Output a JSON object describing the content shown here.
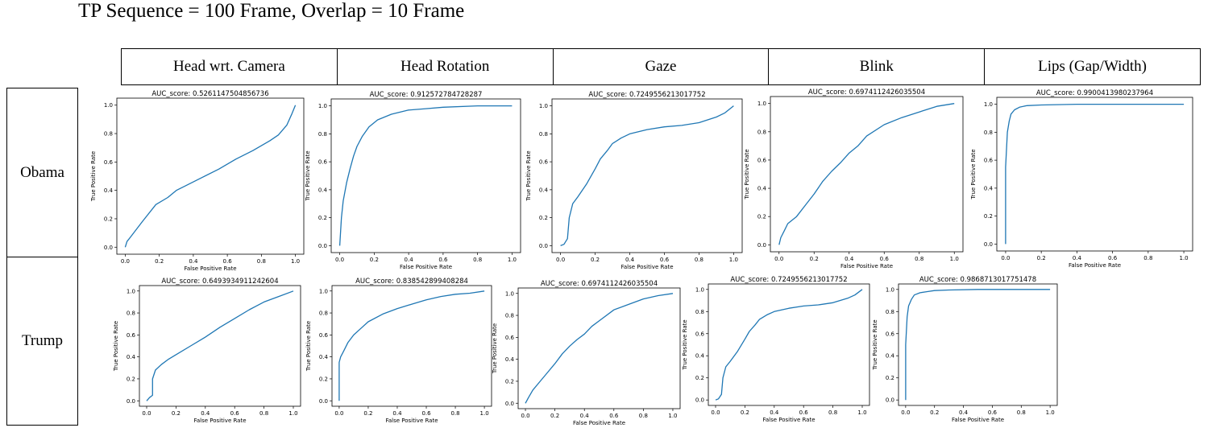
{
  "title": "TP Sequence = 100 Frame,  Overlap = 10 Frame",
  "columns": [
    "Head wrt. Camera",
    "Head Rotation",
    "Gaze",
    "Blink",
    "Lips (Gap/Width)"
  ],
  "rows": [
    "Obama",
    "Trump"
  ],
  "colors": {
    "line": "#1f77b4",
    "axes": "#000000",
    "text": "#000000"
  },
  "chart_data": [
    {
      "type": "line",
      "row": "Obama",
      "column": "Head wrt. Camera",
      "title": "AUC_score: 0.5261147504856736",
      "xlabel": "False Positive Rate",
      "ylabel": "True Positive Rate",
      "xlim": [
        0,
        1
      ],
      "ylim": [
        0,
        1
      ],
      "xticks": [
        "0.0",
        "0.2",
        "0.4",
        "0.6",
        "0.8",
        "1.0"
      ],
      "yticks": [
        "0.0",
        "0.2",
        "0.4",
        "0.6",
        "0.8",
        "1.0"
      ],
      "x": [
        0,
        0.01,
        0.03,
        0.1,
        0.18,
        0.25,
        0.3,
        0.35,
        0.45,
        0.55,
        0.65,
        0.75,
        0.85,
        0.9,
        0.95,
        0.98,
        1.0
      ],
      "y": [
        0,
        0.04,
        0.07,
        0.18,
        0.3,
        0.35,
        0.4,
        0.43,
        0.49,
        0.55,
        0.62,
        0.68,
        0.75,
        0.79,
        0.86,
        0.94,
        1.0
      ]
    },
    {
      "type": "line",
      "row": "Obama",
      "column": "Head Rotation",
      "title": "AUC_score: 0.912572784728287",
      "xlabel": "False Positive Rate",
      "ylabel": "True Positive Rate",
      "xlim": [
        0,
        1
      ],
      "ylim": [
        0,
        1
      ],
      "xticks": [
        "0.0",
        "0.2",
        "0.4",
        "0.6",
        "0.8",
        "1.0"
      ],
      "yticks": [
        "0.0",
        "0.2",
        "0.4",
        "0.6",
        "0.8",
        "1.0"
      ],
      "x": [
        0,
        0.01,
        0.02,
        0.04,
        0.06,
        0.08,
        0.1,
        0.13,
        0.17,
        0.22,
        0.3,
        0.4,
        0.5,
        0.6,
        0.8,
        1.0
      ],
      "y": [
        0,
        0.2,
        0.32,
        0.45,
        0.55,
        0.64,
        0.71,
        0.78,
        0.85,
        0.9,
        0.94,
        0.97,
        0.98,
        0.99,
        1.0,
        1.0
      ]
    },
    {
      "type": "line",
      "row": "Obama",
      "column": "Gaze",
      "title": "AUC_score: 0.7249556213017752",
      "xlabel": "False Positive Rate",
      "ylabel": "True Positive Rate",
      "xlim": [
        0,
        1
      ],
      "ylim": [
        0,
        1
      ],
      "xticks": [
        "0.0",
        "0.2",
        "0.4",
        "0.6",
        "0.8",
        "1.0"
      ],
      "yticks": [
        "0.0",
        "0.2",
        "0.4",
        "0.6",
        "0.8",
        "1.0"
      ],
      "x": [
        0,
        0.02,
        0.04,
        0.05,
        0.07,
        0.1,
        0.15,
        0.2,
        0.23,
        0.27,
        0.3,
        0.35,
        0.4,
        0.5,
        0.6,
        0.7,
        0.8,
        0.9,
        0.95,
        1.0
      ],
      "y": [
        0,
        0.01,
        0.05,
        0.2,
        0.3,
        0.35,
        0.44,
        0.55,
        0.62,
        0.68,
        0.73,
        0.77,
        0.8,
        0.83,
        0.85,
        0.86,
        0.88,
        0.92,
        0.95,
        1.0
      ]
    },
    {
      "type": "line",
      "row": "Obama",
      "column": "Blink",
      "title": "AUC_score: 0.6974112426035504",
      "xlabel": "False Positive Rate",
      "ylabel": "True Positive Rate",
      "xlim": [
        0,
        1
      ],
      "ylim": [
        0,
        1
      ],
      "xticks": [
        "0.0",
        "0.2",
        "0.4",
        "0.6",
        "0.8",
        "1.0"
      ],
      "yticks": [
        "0.0",
        "0.2",
        "0.4",
        "0.6",
        "0.8",
        "1.0"
      ],
      "x": [
        0,
        0.01,
        0.03,
        0.05,
        0.1,
        0.15,
        0.2,
        0.25,
        0.3,
        0.35,
        0.4,
        0.45,
        0.5,
        0.6,
        0.7,
        0.8,
        0.9,
        1.0
      ],
      "y": [
        0,
        0.05,
        0.1,
        0.15,
        0.2,
        0.28,
        0.36,
        0.45,
        0.52,
        0.58,
        0.65,
        0.7,
        0.77,
        0.85,
        0.9,
        0.94,
        0.98,
        1.0
      ]
    },
    {
      "type": "line",
      "row": "Obama",
      "column": "Lips (Gap/Width)",
      "title": "AUC_score: 0.9900413980237964",
      "xlabel": "False Positive Rate",
      "ylabel": "True Positive Rate",
      "xlim": [
        0,
        1
      ],
      "ylim": [
        0,
        1
      ],
      "xticks": [
        "0.0",
        "0.2",
        "0.4",
        "0.6",
        "0.8",
        "1.0"
      ],
      "yticks": [
        "0.0",
        "0.2",
        "0.4",
        "0.6",
        "0.8",
        "1.0"
      ],
      "x": [
        0,
        0,
        0.01,
        0.02,
        0.03,
        0.05,
        0.08,
        0.12,
        0.2,
        0.4,
        1.0
      ],
      "y": [
        0,
        0.55,
        0.8,
        0.88,
        0.93,
        0.96,
        0.98,
        0.99,
        0.995,
        1.0,
        1.0
      ]
    },
    {
      "type": "line",
      "row": "Trump",
      "column": "Head wrt. Camera",
      "title": "AUC_score: 0.6493934911242604",
      "xlabel": "False Positive Rate",
      "ylabel": "True Positive Rate",
      "xlim": [
        0,
        1
      ],
      "ylim": [
        0,
        1
      ],
      "xticks": [
        "0.0",
        "0.2",
        "0.4",
        "0.6",
        "0.8",
        "1.0"
      ],
      "yticks": [
        "0.0",
        "0.2",
        "0.4",
        "0.6",
        "0.8",
        "1.0"
      ],
      "x": [
        0,
        0.02,
        0.04,
        0.04,
        0.06,
        0.1,
        0.15,
        0.2,
        0.3,
        0.4,
        0.5,
        0.6,
        0.7,
        0.8,
        0.9,
        1.0
      ],
      "y": [
        0,
        0.03,
        0.05,
        0.2,
        0.28,
        0.33,
        0.38,
        0.42,
        0.5,
        0.58,
        0.67,
        0.75,
        0.83,
        0.9,
        0.95,
        1.0
      ]
    },
    {
      "type": "line",
      "row": "Trump",
      "column": "Head Rotation",
      "title": "AUC_score: 0.838542899408284",
      "xlabel": "False Positive Rate",
      "ylabel": "True Positive Rate",
      "xlim": [
        0,
        1
      ],
      "ylim": [
        0,
        1
      ],
      "xticks": [
        "0.0",
        "0.2",
        "0.4",
        "0.6",
        "0.8",
        "1.0"
      ],
      "yticks": [
        "0.0",
        "0.2",
        "0.4",
        "0.6",
        "0.8",
        "1.0"
      ],
      "x": [
        0,
        0,
        0.01,
        0.03,
        0.06,
        0.1,
        0.15,
        0.2,
        0.3,
        0.4,
        0.5,
        0.6,
        0.7,
        0.8,
        0.9,
        1.0
      ],
      "y": [
        0,
        0.35,
        0.4,
        0.45,
        0.53,
        0.6,
        0.66,
        0.72,
        0.79,
        0.84,
        0.88,
        0.92,
        0.95,
        0.97,
        0.98,
        1.0
      ]
    },
    {
      "type": "line",
      "row": "Trump",
      "column": "Gaze",
      "title": "AUC_score: 0.6974112426035504",
      "xlabel": "False Positive Rate",
      "ylabel": "True Positive Rate",
      "xlim": [
        0,
        1
      ],
      "ylim": [
        0,
        1
      ],
      "xticks": [
        "0.0",
        "0.2",
        "0.4",
        "0.6",
        "0.8",
        "1.0"
      ],
      "yticks": [
        "0.0",
        "0.2",
        "0.4",
        "0.6",
        "0.8",
        "1.0"
      ],
      "x": [
        0,
        0.02,
        0.05,
        0.1,
        0.15,
        0.2,
        0.25,
        0.3,
        0.35,
        0.4,
        0.45,
        0.5,
        0.6,
        0.7,
        0.8,
        0.9,
        1.0
      ],
      "y": [
        0,
        0.05,
        0.12,
        0.2,
        0.28,
        0.36,
        0.45,
        0.52,
        0.58,
        0.63,
        0.7,
        0.75,
        0.85,
        0.9,
        0.95,
        0.98,
        1.0
      ]
    },
    {
      "type": "line",
      "row": "Trump",
      "column": "Blink",
      "title": "AUC_score: 0.7249556213017752",
      "xlabel": "False Positive Rate",
      "ylabel": "True Positive Rate",
      "xlim": [
        0,
        1
      ],
      "ylim": [
        0,
        1
      ],
      "xticks": [
        "0.0",
        "0.2",
        "0.4",
        "0.6",
        "0.8",
        "1.0"
      ],
      "yticks": [
        "0.0",
        "0.2",
        "0.4",
        "0.6",
        "0.8",
        "1.0"
      ],
      "x": [
        0,
        0.02,
        0.04,
        0.05,
        0.07,
        0.1,
        0.15,
        0.2,
        0.23,
        0.27,
        0.3,
        0.35,
        0.4,
        0.5,
        0.6,
        0.7,
        0.8,
        0.9,
        0.95,
        1.0
      ],
      "y": [
        0,
        0.01,
        0.05,
        0.2,
        0.3,
        0.35,
        0.44,
        0.55,
        0.62,
        0.68,
        0.73,
        0.77,
        0.8,
        0.83,
        0.85,
        0.86,
        0.88,
        0.92,
        0.95,
        1.0
      ]
    },
    {
      "type": "line",
      "row": "Trump",
      "column": "Lips (Gap/Width)",
      "title": "AUC_score: 0.9868713017751478",
      "xlabel": "False Positive Rate",
      "ylabel": "True Positive Rate",
      "xlim": [
        0,
        1
      ],
      "ylim": [
        0,
        1
      ],
      "xticks": [
        "0.0",
        "0.2",
        "0.4",
        "0.6",
        "0.8",
        "1.0"
      ],
      "yticks": [
        "0.0",
        "0.2",
        "0.4",
        "0.6",
        "0.8",
        "1.0"
      ],
      "x": [
        0,
        0,
        0.01,
        0.02,
        0.04,
        0.06,
        0.1,
        0.15,
        0.2,
        0.3,
        0.5,
        1.0
      ],
      "y": [
        0,
        0.5,
        0.75,
        0.85,
        0.91,
        0.95,
        0.97,
        0.98,
        0.99,
        0.995,
        1.0,
        1.0
      ]
    }
  ]
}
